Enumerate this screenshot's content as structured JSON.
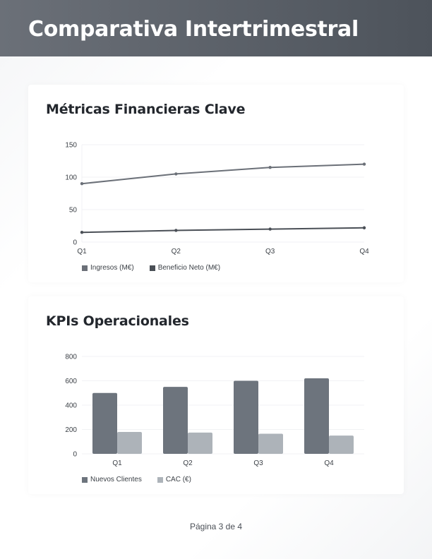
{
  "header": {
    "title": "Comparativa Intertrimestral"
  },
  "cards": [
    {
      "title": "Métricas Financieras Clave"
    },
    {
      "title": "KPIs Operacionales"
    }
  ],
  "footer": {
    "page_label": "Página 3 de 4"
  },
  "colors": {
    "header_start": "#6b7078",
    "header_end": "#4d535b",
    "ingresos": "#6b7078",
    "beneficio": "#4a4f56",
    "nuevos_clientes": "#6d747d",
    "cac": "#adb3b9"
  },
  "chart_data": [
    {
      "type": "line",
      "title": "Métricas Financieras Clave",
      "categories": [
        "Q1",
        "Q2",
        "Q3",
        "Q4"
      ],
      "series": [
        {
          "name": "Ingresos (M€)",
          "values": [
            90,
            105,
            115,
            120
          ],
          "color": "#6b7078"
        },
        {
          "name": "Beneficio Neto (M€)",
          "values": [
            15,
            18,
            20,
            22
          ],
          "color": "#4a4f56"
        }
      ],
      "xlabel": "",
      "ylabel": "",
      "ylim": [
        0,
        150
      ],
      "yticks": [
        0,
        50,
        100,
        150
      ],
      "grid": true,
      "legend_position": "bottom-left"
    },
    {
      "type": "bar",
      "title": "KPIs Operacionales",
      "categories": [
        "Q1",
        "Q2",
        "Q3",
        "Q4"
      ],
      "series": [
        {
          "name": "Nuevos Clientes",
          "values": [
            500,
            550,
            600,
            620
          ],
          "color": "#6d747d"
        },
        {
          "name": "CAC (€)",
          "values": [
            180,
            175,
            165,
            150
          ],
          "color": "#adb3b9"
        }
      ],
      "xlabel": "",
      "ylabel": "",
      "ylim": [
        0,
        800
      ],
      "yticks": [
        0,
        200,
        400,
        600,
        800
      ],
      "grid": true,
      "legend_position": "bottom-left"
    }
  ]
}
